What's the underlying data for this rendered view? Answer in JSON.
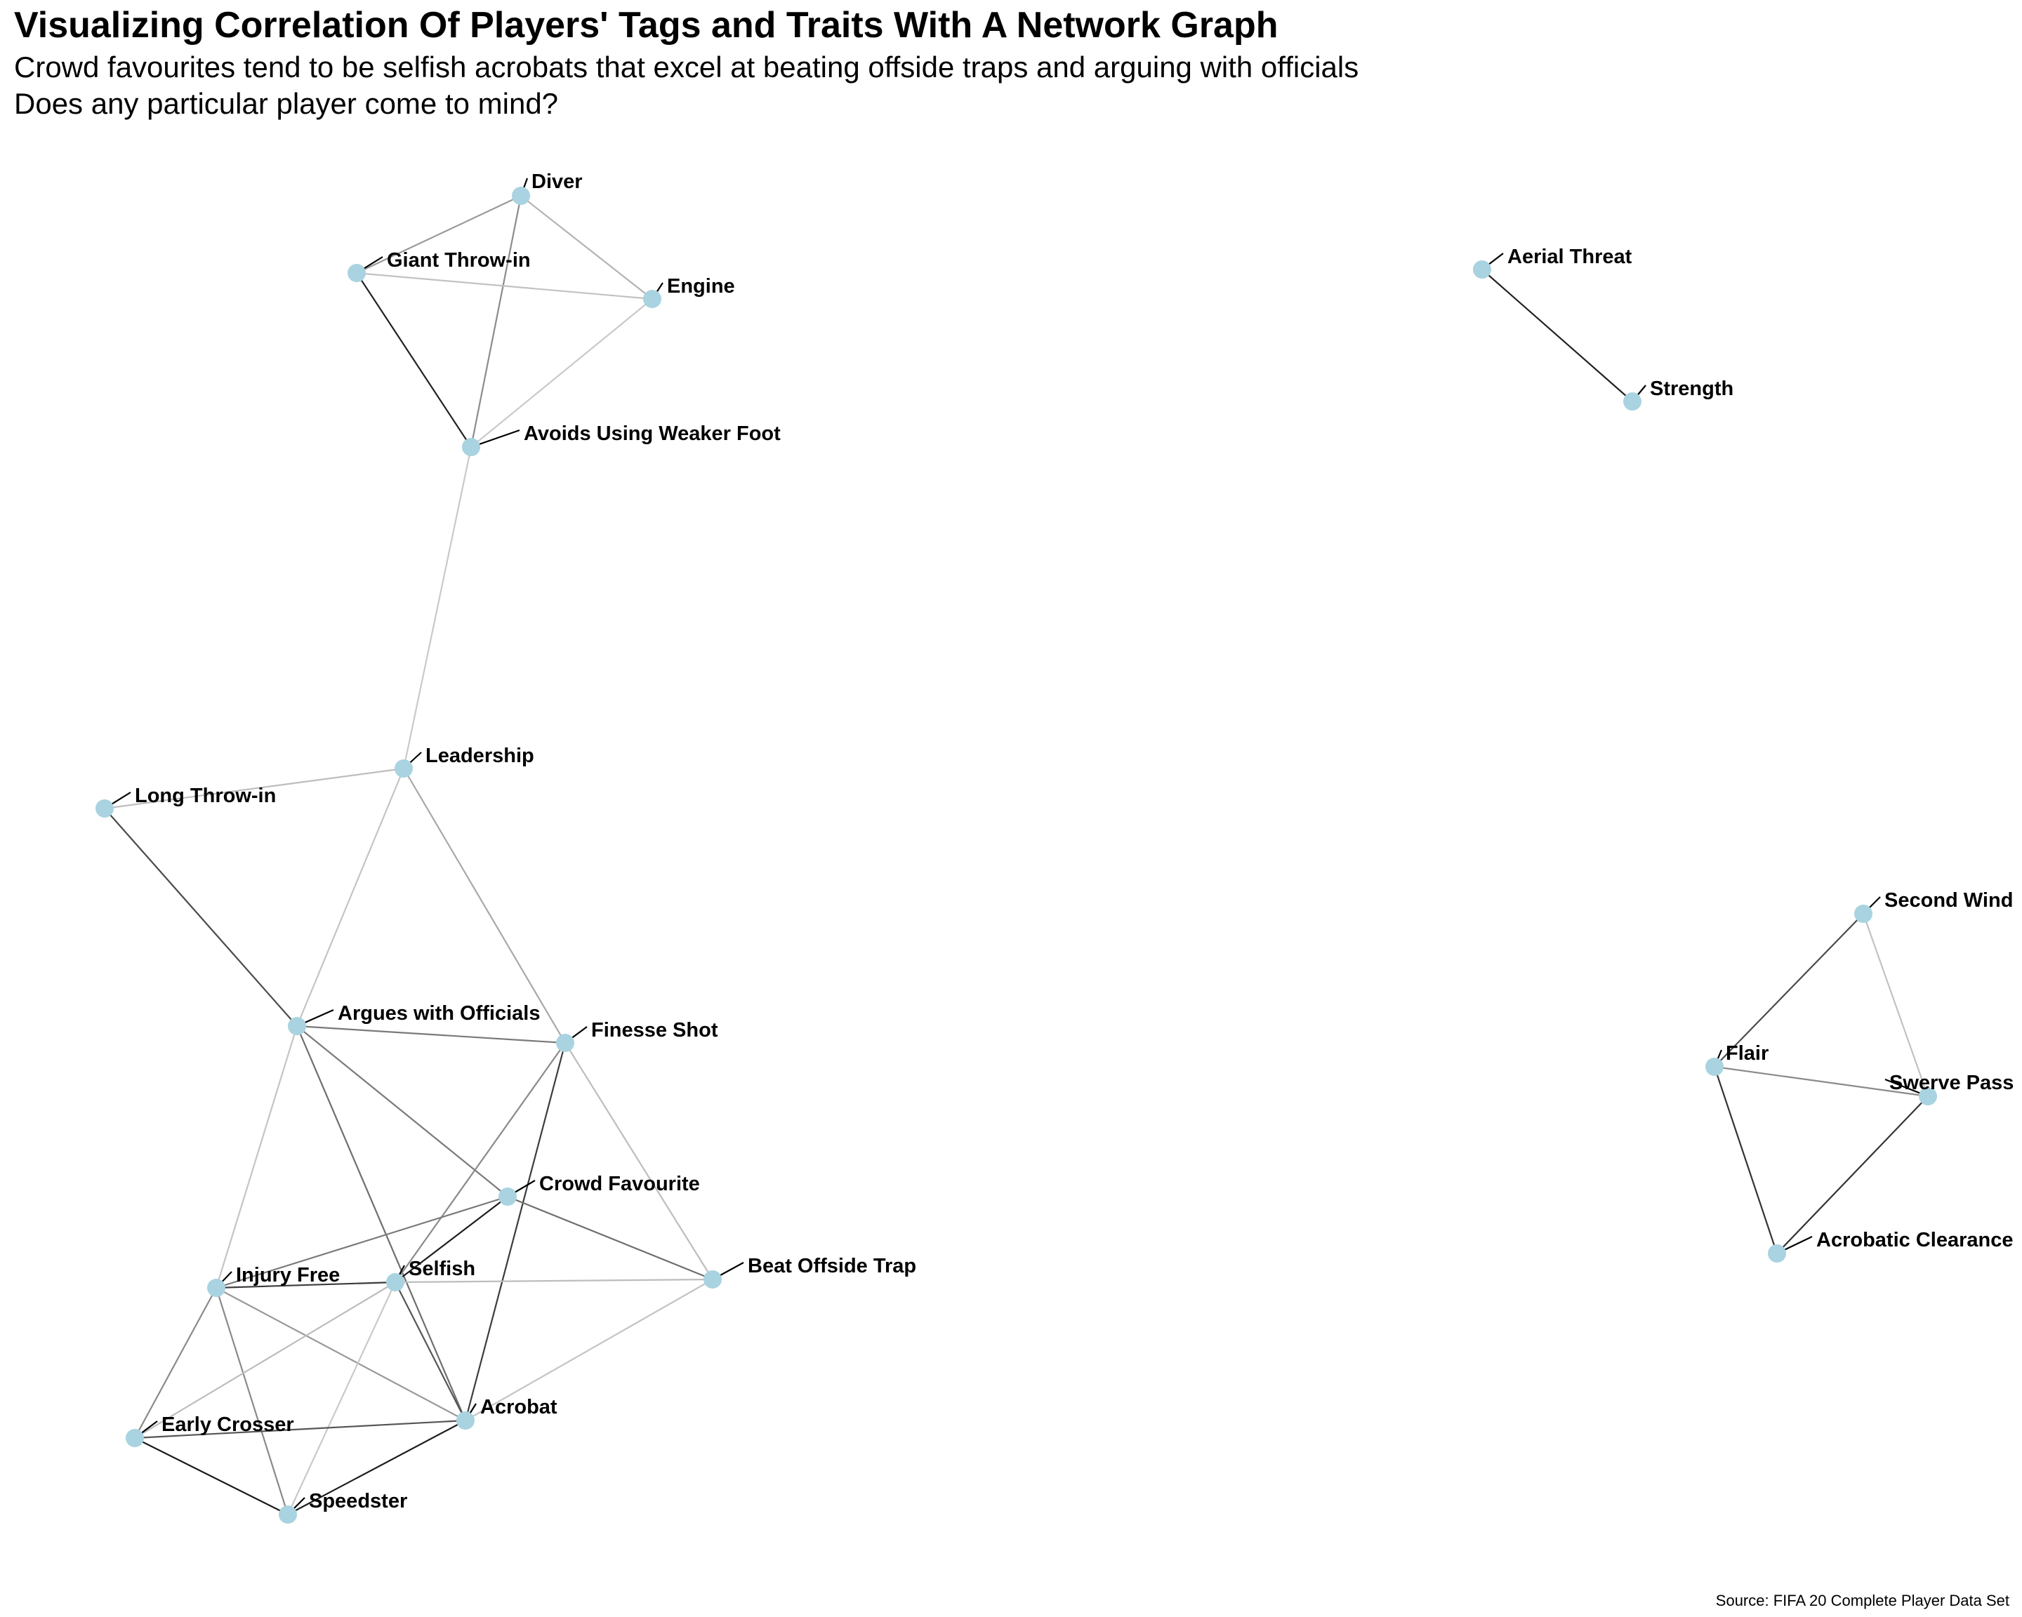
{
  "title": "Visualizing Correlation Of Players' Tags and Traits With A Network Graph",
  "subtitle": [
    "Crowd favourites tend to be selfish acrobats that excel at beating offside traps and arguing with officials",
    "Does any particular player come to mind?"
  ],
  "caption": "Source: FIFA 20 Complete Player Data Set",
  "colors": {
    "node": "#a9d3e0",
    "label_leader": "#000000"
  },
  "nodes": [
    {
      "id": "diver",
      "label": "Diver"
    },
    {
      "id": "giant_throw",
      "label": "Giant Throw-in"
    },
    {
      "id": "engine",
      "label": "Engine"
    },
    {
      "id": "avoids_weak",
      "label": "Avoids Using Weaker Foot"
    },
    {
      "id": "aerial",
      "label": "Aerial Threat"
    },
    {
      "id": "strength",
      "label": "Strength"
    },
    {
      "id": "leadership",
      "label": "Leadership"
    },
    {
      "id": "long_throw",
      "label": "Long Throw-in"
    },
    {
      "id": "second_wind",
      "label": "Second Wind"
    },
    {
      "id": "flair",
      "label": "Flair"
    },
    {
      "id": "swerve",
      "label": "Swerve Pass"
    },
    {
      "id": "acro_clear",
      "label": "Acrobatic Clearance"
    },
    {
      "id": "argues",
      "label": "Argues with Officials"
    },
    {
      "id": "finesse",
      "label": "Finesse Shot"
    },
    {
      "id": "crowd",
      "label": "Crowd Favourite"
    },
    {
      "id": "beat_offside",
      "label": "Beat Offside Trap"
    },
    {
      "id": "injury_free",
      "label": "Injury Free"
    },
    {
      "id": "selfish",
      "label": "Selfish"
    },
    {
      "id": "acrobat",
      "label": "Acrobat"
    },
    {
      "id": "early_crosser",
      "label": "Early Crosser"
    },
    {
      "id": "speedster",
      "label": "Speedster"
    }
  ],
  "edges": [
    {
      "from": "diver",
      "to": "giant_throw",
      "shade": "#999999"
    },
    {
      "from": "diver",
      "to": "engine",
      "shade": "#b3b3b3"
    },
    {
      "from": "diver",
      "to": "avoids_weak",
      "shade": "#8c8c8c"
    },
    {
      "from": "giant_throw",
      "to": "engine",
      "shade": "#c2c2c2"
    },
    {
      "from": "giant_throw",
      "to": "avoids_weak",
      "shade": "#222222"
    },
    {
      "from": "engine",
      "to": "avoids_weak",
      "shade": "#c9c9c9"
    },
    {
      "from": "avoids_weak",
      "to": "leadership",
      "shade": "#c9c9c9"
    },
    {
      "from": "aerial",
      "to": "strength",
      "shade": "#222222"
    },
    {
      "from": "long_throw",
      "to": "leadership",
      "shade": "#bdbdbd"
    },
    {
      "from": "long_throw",
      "to": "argues",
      "shade": "#4a4a4a"
    },
    {
      "from": "leadership",
      "to": "argues",
      "shade": "#c4c4c4"
    },
    {
      "from": "leadership",
      "to": "finesse",
      "shade": "#a8a8a8"
    },
    {
      "from": "second_wind",
      "to": "flair",
      "shade": "#4a4a4a"
    },
    {
      "from": "second_wind",
      "to": "swerve",
      "shade": "#c2c2c2"
    },
    {
      "from": "flair",
      "to": "swerve",
      "shade": "#8a8a8a"
    },
    {
      "from": "flair",
      "to": "acro_clear",
      "shade": "#333333"
    },
    {
      "from": "swerve",
      "to": "acro_clear",
      "shade": "#333333"
    },
    {
      "from": "argues",
      "to": "finesse",
      "shade": "#7a7a7a"
    },
    {
      "from": "argues",
      "to": "crowd",
      "shade": "#7a7a7a"
    },
    {
      "from": "argues",
      "to": "injury_free",
      "shade": "#c4c4c4"
    },
    {
      "from": "argues",
      "to": "acrobat",
      "shade": "#6e6e6e"
    },
    {
      "from": "finesse",
      "to": "selfish",
      "shade": "#8a8a8a"
    },
    {
      "from": "finesse",
      "to": "acrobat",
      "shade": "#3c3c3c"
    },
    {
      "from": "finesse",
      "to": "beat_offside",
      "shade": "#bdbdbd"
    },
    {
      "from": "crowd",
      "to": "injury_free",
      "shade": "#7a7a7a"
    },
    {
      "from": "crowd",
      "to": "selfish",
      "shade": "#1c1c1c"
    },
    {
      "from": "crowd",
      "to": "beat_offside",
      "shade": "#6e6e6e"
    },
    {
      "from": "injury_free",
      "to": "selfish",
      "shade": "#3c3c3c"
    },
    {
      "from": "injury_free",
      "to": "acrobat",
      "shade": "#999999"
    },
    {
      "from": "injury_free",
      "to": "early_crosser",
      "shade": "#8a8a8a"
    },
    {
      "from": "injury_free",
      "to": "speedster",
      "shade": "#8a8a8a"
    },
    {
      "from": "selfish",
      "to": "beat_offside",
      "shade": "#bdbdbd"
    },
    {
      "from": "selfish",
      "to": "acrobat",
      "shade": "#555555"
    },
    {
      "from": "selfish",
      "to": "early_crosser",
      "shade": "#bdbdbd"
    },
    {
      "from": "selfish",
      "to": "speedster",
      "shade": "#c9c9c9"
    },
    {
      "from": "beat_offside",
      "to": "acrobat",
      "shade": "#c4c4c4"
    },
    {
      "from": "acrobat",
      "to": "early_crosser",
      "shade": "#555555"
    },
    {
      "from": "acrobat",
      "to": "speedster",
      "shade": "#1c1c1c"
    },
    {
      "from": "early_crosser",
      "to": "speedster",
      "shade": "#1c1c1c"
    }
  ]
}
